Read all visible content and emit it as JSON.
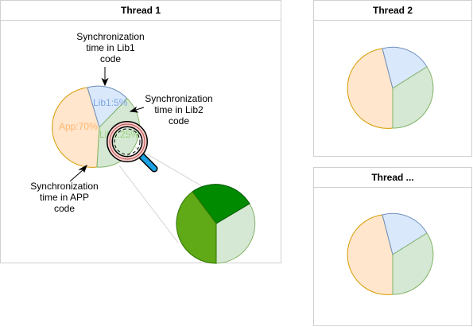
{
  "panels": [
    {
      "title": "Thread 1"
    },
    {
      "title": "Thread 2"
    },
    {
      "title": "Thread ..."
    }
  ],
  "thread1": {
    "pie_labels": {
      "lib1": "Lib1:5%",
      "app": "App:70%",
      "lib2": "Lib2:25%"
    },
    "annotations": {
      "lib1": [
        "Synchronization",
        "time in Lib1",
        "code"
      ],
      "lib2": [
        "Synchronization",
        "time in Lib2",
        "code"
      ],
      "app": [
        "Synchronization",
        "time in APP",
        "code"
      ]
    }
  },
  "colors": {
    "app_fill": "#ffe6cc",
    "app_stroke": "#d79b00",
    "lib1_fill": "#dae8fc",
    "lib1_stroke": "#6c8ebf",
    "lib2_fill": "#d5e8d4",
    "lib2_stroke": "#82b366",
    "zoom_dark_green": "#008a00",
    "zoom_mid_green": "#60a917",
    "magnifier_ring": "#f8cecc",
    "magnifier_ring_stroke": "#b85450",
    "magnifier_handle": "#1ba1e2",
    "lib1_label": "#7ea6e0",
    "app_label": "#ffb570",
    "lib2_label": "#97d077"
  },
  "icons": {
    "magnifier": "magnifier-icon"
  }
}
